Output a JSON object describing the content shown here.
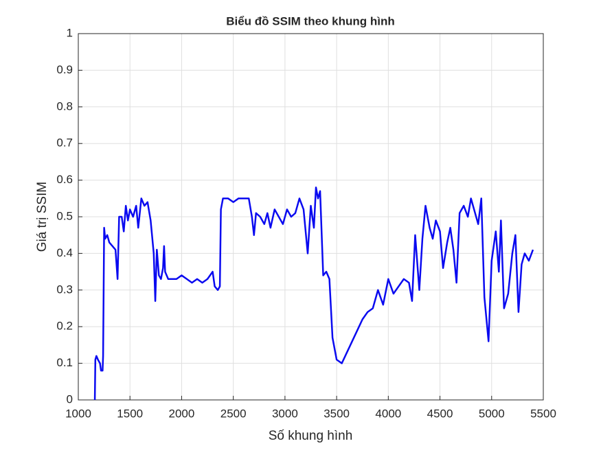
{
  "chart_data": {
    "type": "line",
    "title": "Biểu đồ SSIM theo khung hình",
    "xlabel": "Số khung hình",
    "ylabel": "Giá trị SSIM",
    "xlim": [
      1000,
      5500
    ],
    "xticks": [
      1000,
      1500,
      2000,
      2500,
      3000,
      3500,
      4000,
      4500,
      5000,
      5500
    ],
    "ylim": [
      0,
      1
    ],
    "yticks": [
      0,
      0.1,
      0.2,
      0.3,
      0.4,
      0.5,
      0.6,
      0.7,
      0.8,
      0.9,
      1
    ],
    "grid": true,
    "x": [
      1160,
      1165,
      1175,
      1190,
      1210,
      1220,
      1235,
      1240,
      1250,
      1260,
      1280,
      1300,
      1330,
      1360,
      1380,
      1395,
      1420,
      1440,
      1460,
      1480,
      1500,
      1530,
      1560,
      1580,
      1610,
      1640,
      1670,
      1700,
      1730,
      1745,
      1760,
      1780,
      1800,
      1820,
      1830,
      1840,
      1870,
      1900,
      1950,
      2000,
      2050,
      2100,
      2150,
      2200,
      2250,
      2300,
      2320,
      2350,
      2370,
      2380,
      2400,
      2450,
      2500,
      2550,
      2600,
      2650,
      2680,
      2700,
      2720,
      2760,
      2800,
      2830,
      2860,
      2900,
      2940,
      2980,
      3020,
      3060,
      3100,
      3140,
      3180,
      3220,
      3250,
      3280,
      3300,
      3320,
      3340,
      3370,
      3400,
      3430,
      3460,
      3480,
      3500,
      3550,
      3600,
      3650,
      3700,
      3750,
      3800,
      3850,
      3900,
      3950,
      4000,
      4050,
      4100,
      4150,
      4200,
      4230,
      4260,
      4300,
      4330,
      4360,
      4400,
      4430,
      4460,
      4500,
      4530,
      4570,
      4600,
      4630,
      4660,
      4690,
      4730,
      4770,
      4800,
      4840,
      4870,
      4900,
      4930,
      4950,
      4970,
      5000,
      5040,
      5070,
      5090,
      5120,
      5160,
      5200,
      5230,
      5260,
      5290,
      5320,
      5360,
      5400
    ],
    "series": [
      {
        "color": "#0a0af0",
        "values": [
          0,
          0.11,
          0.12,
          0.11,
          0.1,
          0.08,
          0.08,
          0.12,
          0.47,
          0.44,
          0.45,
          0.43,
          0.42,
          0.41,
          0.33,
          0.5,
          0.5,
          0.46,
          0.53,
          0.49,
          0.52,
          0.5,
          0.53,
          0.47,
          0.55,
          0.53,
          0.54,
          0.49,
          0.4,
          0.27,
          0.41,
          0.34,
          0.33,
          0.36,
          0.42,
          0.35,
          0.33,
          0.33,
          0.33,
          0.34,
          0.33,
          0.32,
          0.33,
          0.32,
          0.33,
          0.35,
          0.31,
          0.3,
          0.31,
          0.52,
          0.55,
          0.55,
          0.54,
          0.55,
          0.55,
          0.55,
          0.5,
          0.45,
          0.51,
          0.5,
          0.48,
          0.51,
          0.47,
          0.52,
          0.5,
          0.48,
          0.52,
          0.5,
          0.51,
          0.55,
          0.52,
          0.4,
          0.53,
          0.47,
          0.58,
          0.55,
          0.57,
          0.34,
          0.35,
          0.33,
          0.17,
          0.14,
          0.11,
          0.1,
          0.13,
          0.16,
          0.19,
          0.22,
          0.24,
          0.25,
          0.3,
          0.26,
          0.33,
          0.29,
          0.31,
          0.33,
          0.32,
          0.27,
          0.45,
          0.3,
          0.44,
          0.53,
          0.47,
          0.44,
          0.49,
          0.46,
          0.36,
          0.43,
          0.47,
          0.41,
          0.32,
          0.51,
          0.53,
          0.5,
          0.55,
          0.51,
          0.48,
          0.55,
          0.28,
          0.22,
          0.16,
          0.38,
          0.46,
          0.35,
          0.49,
          0.25,
          0.29,
          0.4,
          0.45,
          0.24,
          0.37,
          0.4,
          0.38,
          0.41
        ]
      }
    ]
  }
}
